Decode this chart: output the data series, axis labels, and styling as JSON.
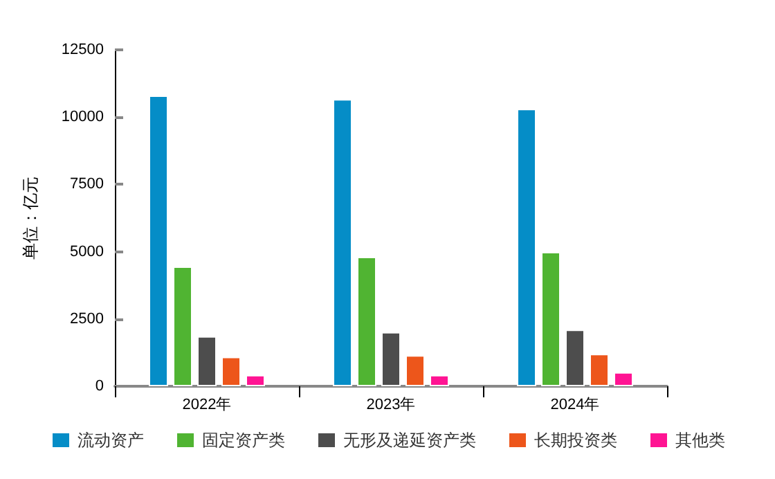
{
  "chart_data": {
    "type": "bar",
    "ylabel": "单位：亿元",
    "categories": [
      "2022年",
      "2023年",
      "2024年"
    ],
    "series": [
      {
        "name": "流动资产",
        "color": "#058dc7",
        "values": [
          10800,
          10670,
          10310
        ]
      },
      {
        "name": "固定资产类",
        "color": "#50b432",
        "values": [
          4450,
          4810,
          4990
        ]
      },
      {
        "name": "无形及递延资产类",
        "color": "#4d4d4d",
        "values": [
          1860,
          2010,
          2100
        ]
      },
      {
        "name": "长期投资类",
        "color": "#ed561b",
        "values": [
          1090,
          1150,
          1200
        ]
      },
      {
        "name": "其他类",
        "color": "#ff1493",
        "values": [
          420,
          420,
          520
        ]
      }
    ],
    "ylim": [
      0,
      12500
    ],
    "yticks": [
      0,
      2500,
      5000,
      7500,
      10000,
      12500
    ],
    "grid": false,
    "legend": "bottom"
  }
}
